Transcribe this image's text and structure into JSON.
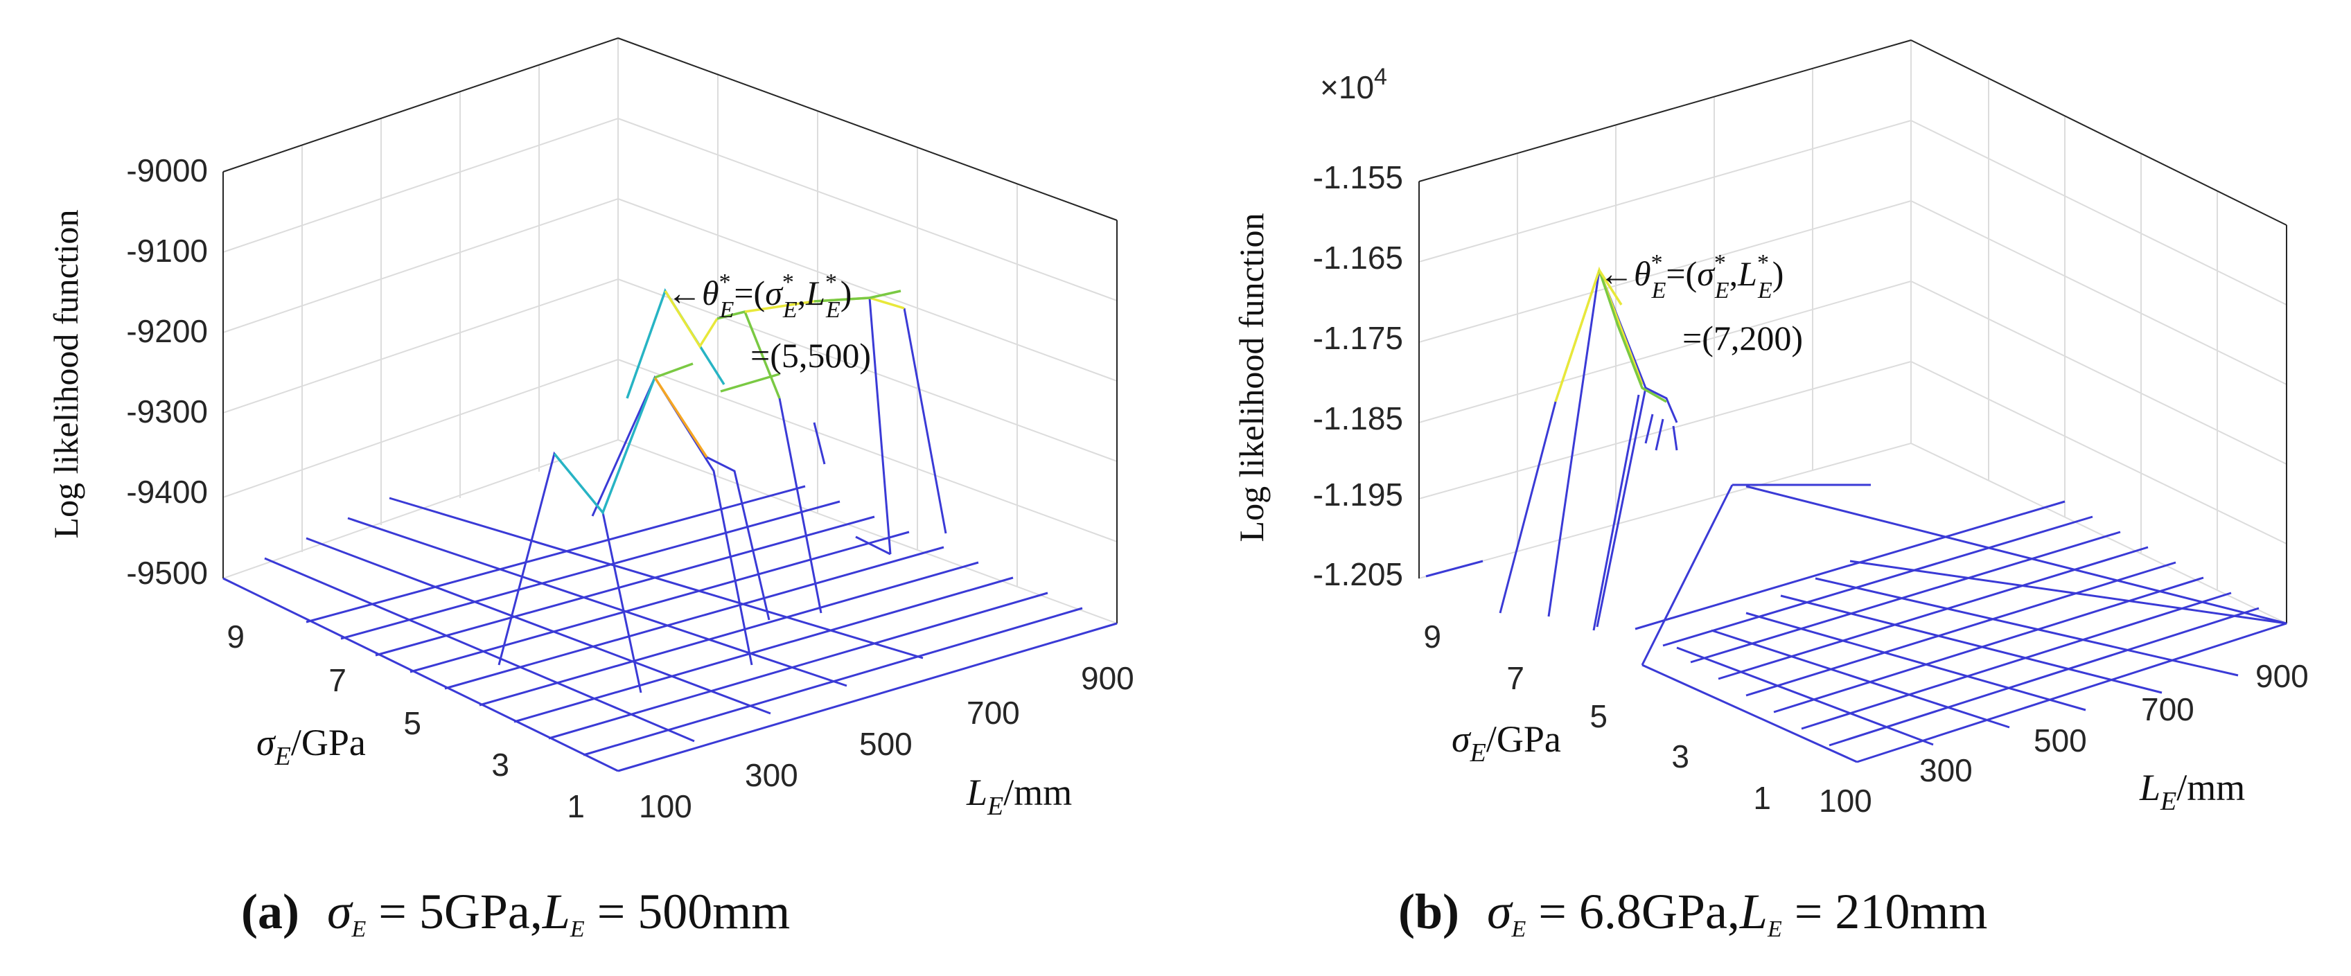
{
  "chart_data": [
    {
      "type": "surface3d",
      "panel": "a",
      "zlabel": "Log likelihood function",
      "zticks": [
        "-9000",
        "-9100",
        "-9200",
        "-9300",
        "-9400",
        "-9500"
      ],
      "zlim": [
        -9500,
        -9000
      ],
      "xlabel_sym": "L",
      "xlabel_sub": "E",
      "xlabel_unit": "/mm",
      "xticks": [
        "100",
        "300",
        "500",
        "700",
        "900"
      ],
      "ylabel_sym": "σ",
      "ylabel_sub": "E",
      "ylabel_unit": "/GPa",
      "yticks": [
        "1",
        "3",
        "5",
        "7",
        "9"
      ],
      "annotation": {
        "arrow": "←",
        "theta": "θ",
        "sup": "*",
        "sub": "E",
        "eq": "=(",
        "sigma": "σ",
        "L": "L",
        "comma": ",",
        "close": ")",
        "value": "=(5,500)"
      },
      "peak": {
        "sigma": 5,
        "L": 500,
        "z": -9150
      },
      "caption": {
        "label": "(a)",
        "sigma": "σ",
        "sub": "E",
        "text1": " = 5GPa,",
        "L": "L",
        "text2": " = 500mm"
      }
    },
    {
      "type": "surface3d",
      "panel": "b",
      "multiplier": "×10",
      "multiplier_exp": "4",
      "zlabel": "Log likelihood function",
      "zticks": [
        "-1.155",
        "-1.165",
        "-1.175",
        "-1.185",
        "-1.195",
        "-1.205"
      ],
      "zlim": [
        -1.205,
        -1.155
      ],
      "xlabel_sym": "L",
      "xlabel_sub": "E",
      "xlabel_unit": "/mm",
      "xticks": [
        "100",
        "300",
        "500",
        "700",
        "900"
      ],
      "ylabel_sym": "σ",
      "ylabel_sub": "E",
      "ylabel_unit": "/GPa",
      "yticks": [
        "1",
        "3",
        "5",
        "7",
        "9"
      ],
      "annotation": {
        "arrow": "←",
        "theta": "θ",
        "sup": "*",
        "sub": "E",
        "eq": "=(",
        "sigma": "σ",
        "L": "L",
        "comma": ",",
        "close": ")",
        "value": "=(7,200)"
      },
      "peak": {
        "sigma": 7,
        "L": 200,
        "z": -1.167
      },
      "caption": {
        "label": "(b)",
        "sigma": "σ",
        "sub": "E",
        "text1": " = 6.8GPa,",
        "L": "L",
        "text2": " = 210mm"
      }
    }
  ],
  "colors": {
    "mesh": "#3a3ad6",
    "cyan": "#27b4c4",
    "yellow": "#e8e83a",
    "green": "#7ac943",
    "orange": "#f5a623",
    "axis": "#262626",
    "grid": "#dcdcdc"
  }
}
